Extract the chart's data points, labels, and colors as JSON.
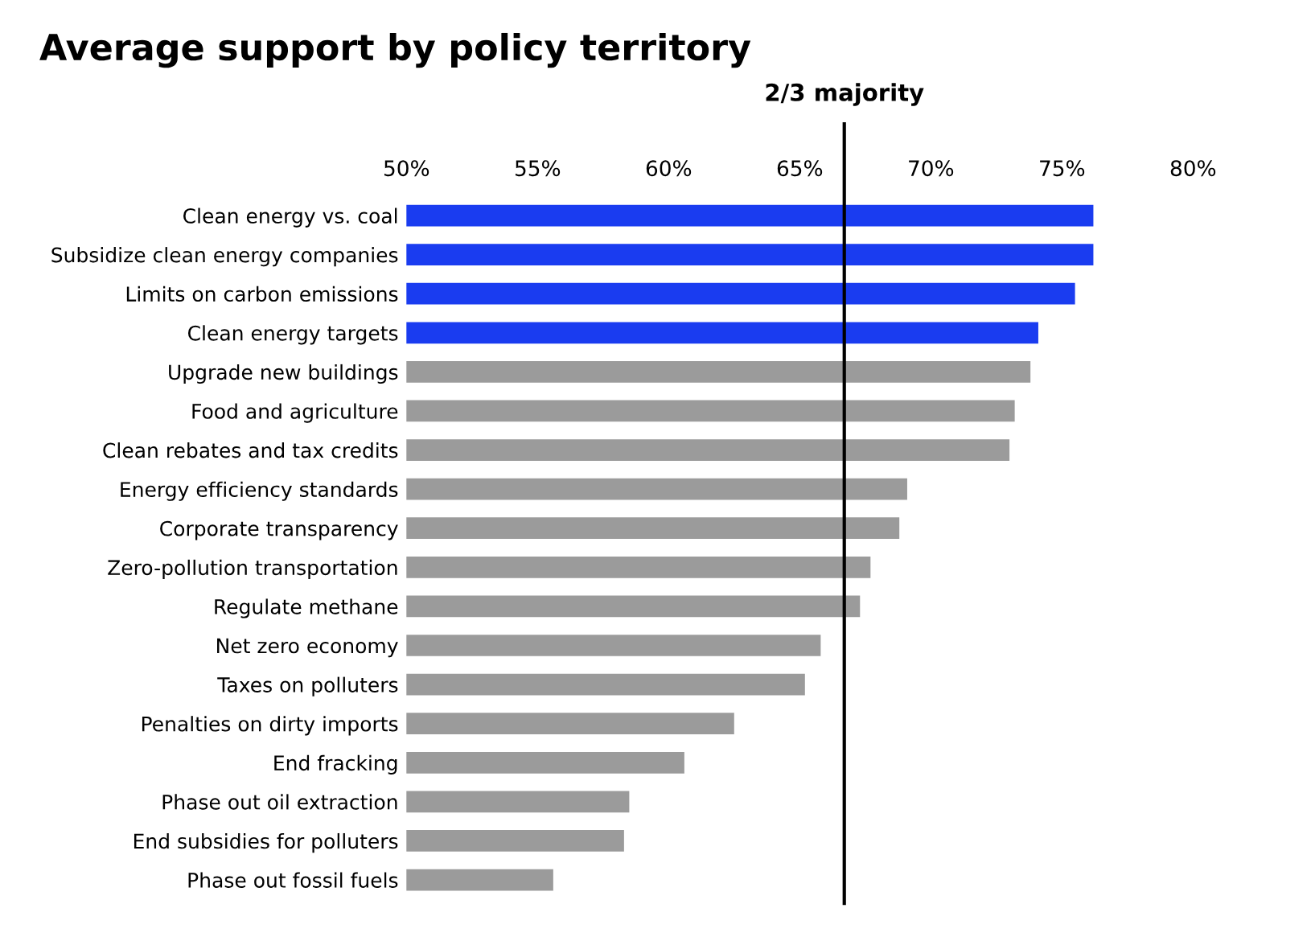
{
  "chart_data": {
    "type": "bar",
    "orientation": "horizontal",
    "title": "Average support by policy territory",
    "categories": [
      "Clean energy vs. coal",
      "Subsidize clean energy companies",
      "Limits on carbon emissions",
      "Clean energy targets",
      "Upgrade new buildings",
      "Food and agriculture",
      "Clean rebates and tax credits",
      "Energy efficiency standards",
      "Corporate transparency",
      "Zero-pollution transportation",
      "Regulate methane",
      "Net zero economy",
      "Taxes on polluters",
      "Penalties on dirty imports",
      "End fracking",
      "Phase out oil extraction",
      "End subsidies for polluters",
      "Phase out fossil fuels"
    ],
    "values": [
      76.2,
      76.2,
      75.5,
      74.1,
      73.8,
      73.2,
      73.0,
      69.1,
      68.8,
      67.7,
      67.3,
      65.8,
      65.2,
      62.5,
      60.6,
      58.5,
      58.3,
      55.6
    ],
    "colors": [
      "#1a3cf0",
      "#1a3cf0",
      "#1a3cf0",
      "#1a3cf0",
      "#9b9b9b",
      "#9b9b9b",
      "#9b9b9b",
      "#9b9b9b",
      "#9b9b9b",
      "#9b9b9b",
      "#9b9b9b",
      "#9b9b9b",
      "#9b9b9b",
      "#9b9b9b",
      "#9b9b9b",
      "#9b9b9b",
      "#9b9b9b",
      "#9b9b9b"
    ],
    "xlim": [
      50,
      80
    ],
    "xticks": [
      {
        "value": 50,
        "label": "50%"
      },
      {
        "value": 55,
        "label": "55%"
      },
      {
        "value": 60,
        "label": "60%"
      },
      {
        "value": 65,
        "label": "65%"
      },
      {
        "value": 70,
        "label": "70%"
      },
      {
        "value": 75,
        "label": "75%"
      },
      {
        "value": 80,
        "label": "80%"
      }
    ],
    "ref_lines": [
      {
        "axis": "x",
        "value": 66.7,
        "label": "2/3 majority",
        "color": "#000000"
      }
    ],
    "grid": false,
    "legend": false
  }
}
